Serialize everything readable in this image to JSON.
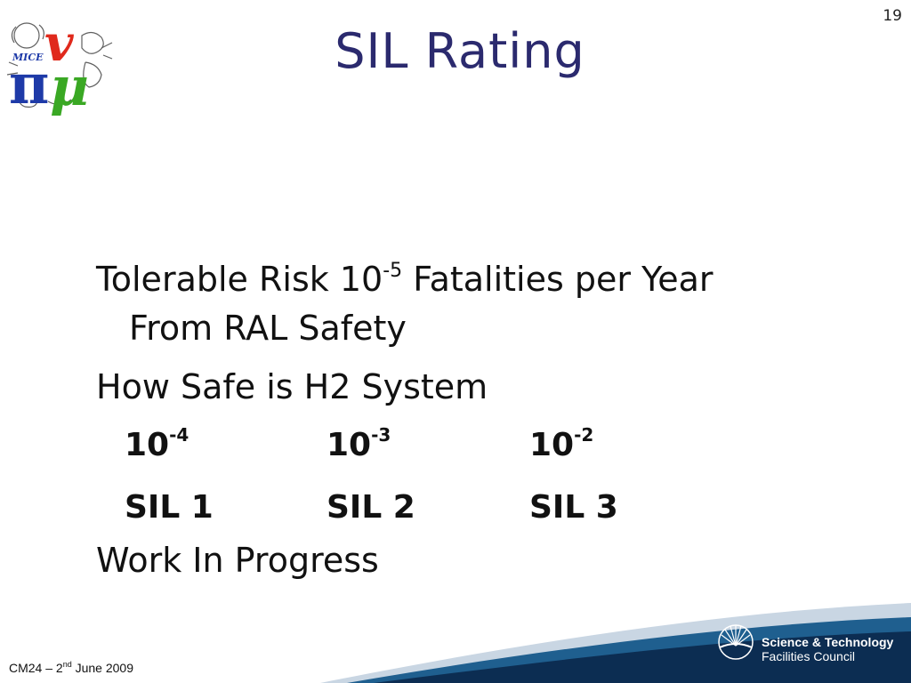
{
  "slide": {
    "number": "19",
    "title": "SIL Rating",
    "logo_label": "MICE"
  },
  "content": {
    "line1_main": "Tolerable Risk 10",
    "line1_exp": "-5",
    "line1_tail": " Fatalities per Year",
    "line1_cont": "From RAL Safety",
    "line2": "How Safe is H2 System",
    "probabilities": [
      {
        "base": "10",
        "exp": "-4",
        "sil": "SIL 1"
      },
      {
        "base": "10",
        "exp": "-3",
        "sil": "SIL 2"
      },
      {
        "base": "10",
        "exp": "-2",
        "sil": "SIL 3"
      }
    ],
    "line3": "Work In Progress"
  },
  "footer": {
    "prefix": "CM24 – 2",
    "sup": "nd",
    "suffix": " June 2009",
    "org_line1": "Science & Technology",
    "org_line2": "Facilities Council"
  },
  "colors": {
    "title": "#2b2a6e",
    "footer_navy": "#0c2d52",
    "footer_blue": "#1f5f8f"
  }
}
